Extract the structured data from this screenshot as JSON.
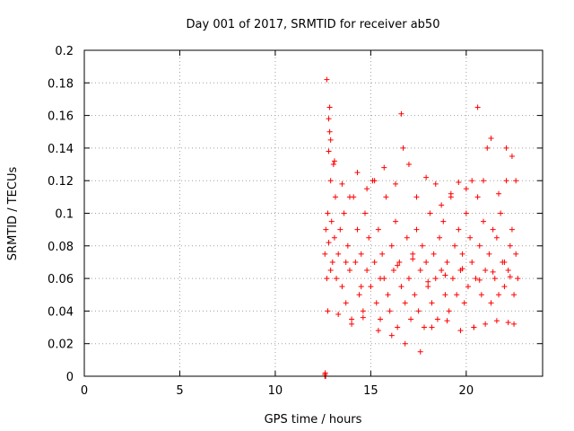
{
  "chart_data": {
    "type": "scatter",
    "title": "Day 001 of 2017, SRMTID for receiver ab50",
    "xlabel": "GPS time / hours",
    "ylabel": "SRMTID / TECUs",
    "xlim": [
      0,
      24
    ],
    "ylim": [
      0,
      0.2
    ],
    "xticks": [
      0,
      5,
      10,
      15,
      20
    ],
    "xtick_labels": [
      "0",
      "5",
      "10",
      "15",
      "20"
    ],
    "yticks": [
      0,
      0.02,
      0.04,
      0.06,
      0.08,
      0.1,
      0.12,
      0.14,
      0.16,
      0.18,
      0.2
    ],
    "ytick_labels": [
      "0",
      "0.02",
      "0.04",
      "0.06",
      "0.08",
      "0.1",
      "0.12",
      "0.14",
      "0.16",
      "0.18",
      "0.2"
    ],
    "grid": true,
    "marker": "+",
    "color": "#ff0000",
    "series": [
      {
        "name": "SRMTID",
        "x": [
          12.6,
          12.65,
          12.7,
          12.75,
          12.8,
          12.85,
          12.9,
          12.95,
          13.0,
          13.05,
          13.1,
          13.15,
          13.2,
          13.3,
          13.4,
          13.5,
          13.6,
          13.7,
          13.8,
          13.9,
          14.0,
          14.1,
          14.2,
          14.3,
          14.4,
          14.5,
          14.6,
          14.7,
          14.8,
          14.9,
          15.0,
          15.1,
          15.2,
          15.3,
          15.4,
          15.5,
          15.6,
          15.7,
          15.8,
          15.9,
          16.0,
          16.1,
          16.2,
          16.3,
          16.4,
          16.5,
          16.6,
          16.7,
          16.8,
          16.9,
          17.0,
          17.1,
          17.2,
          17.3,
          17.4,
          17.5,
          17.6,
          17.7,
          17.8,
          17.9,
          18.0,
          18.1,
          18.2,
          18.3,
          18.4,
          18.5,
          18.6,
          18.7,
          18.8,
          18.9,
          19.0,
          19.1,
          19.2,
          19.3,
          19.4,
          19.5,
          19.6,
          19.7,
          19.8,
          19.9,
          20.0,
          20.1,
          20.2,
          20.3,
          20.4,
          20.5,
          20.6,
          20.7,
          20.8,
          20.9,
          21.0,
          21.1,
          21.2,
          21.3,
          21.4,
          21.5,
          21.6,
          21.7,
          21.8,
          21.9,
          22.0,
          22.1,
          22.2,
          22.3,
          22.4,
          22.5,
          22.6,
          22.7,
          12.7,
          12.8,
          12.9,
          12.8,
          12.85,
          13.1,
          13.5,
          13.9,
          14.3,
          14.8,
          15.2,
          15.7,
          16.3,
          16.6,
          17.0,
          17.4,
          17.9,
          18.4,
          18.7,
          19.2,
          19.6,
          20.0,
          20.3,
          20.6,
          20.9,
          21.3,
          21.7,
          22.1,
          22.4,
          22.6,
          12.75,
          13.3,
          14.0,
          14.6,
          15.4,
          16.1,
          16.8,
          17.6,
          18.2,
          19.0,
          19.7,
          20.4,
          21.0,
          21.6,
          22.2,
          22.5,
          12.9,
          13.7,
          14.5,
          15.5,
          16.4,
          17.2,
          18.0,
          18.9,
          19.8,
          20.7,
          21.4,
          22.0,
          22.3,
          12.6,
          12.6,
          12.62,
          12.64
        ],
        "y": [
          0.075,
          0.09,
          0.06,
          0.1,
          0.082,
          0.165,
          0.12,
          0.095,
          0.07,
          0.13,
          0.085,
          0.11,
          0.06,
          0.075,
          0.09,
          0.055,
          0.1,
          0.045,
          0.08,
          0.065,
          0.035,
          0.11,
          0.07,
          0.09,
          0.05,
          0.075,
          0.04,
          0.1,
          0.065,
          0.085,
          0.055,
          0.12,
          0.07,
          0.045,
          0.09,
          0.035,
          0.075,
          0.06,
          0.11,
          0.05,
          0.04,
          0.08,
          0.065,
          0.095,
          0.03,
          0.07,
          0.055,
          0.14,
          0.045,
          0.085,
          0.06,
          0.035,
          0.075,
          0.05,
          0.09,
          0.04,
          0.065,
          0.08,
          0.03,
          0.07,
          0.055,
          0.1,
          0.045,
          0.075,
          0.06,
          0.035,
          0.085,
          0.065,
          0.095,
          0.05,
          0.07,
          0.04,
          0.11,
          0.06,
          0.08,
          0.05,
          0.09,
          0.065,
          0.075,
          0.045,
          0.1,
          0.055,
          0.085,
          0.07,
          0.03,
          0.06,
          0.11,
          0.08,
          0.05,
          0.095,
          0.065,
          0.14,
          0.075,
          0.045,
          0.09,
          0.06,
          0.085,
          0.05,
          0.1,
          0.07,
          0.055,
          0.12,
          0.065,
          0.08,
          0.09,
          0.05,
          0.075,
          0.06,
          0.182,
          0.158,
          0.145,
          0.138,
          0.15,
          0.132,
          0.118,
          0.11,
          0.125,
          0.115,
          0.12,
          0.128,
          0.118,
          0.161,
          0.13,
          0.11,
          0.122,
          0.118,
          0.105,
          0.112,
          0.119,
          0.115,
          0.12,
          0.165,
          0.12,
          0.146,
          0.112,
          0.14,
          0.135,
          0.12,
          0.04,
          0.038,
          0.032,
          0.036,
          0.028,
          0.025,
          0.02,
          0.015,
          0.03,
          0.034,
          0.028,
          0.03,
          0.032,
          0.034,
          0.033,
          0.032,
          0.065,
          0.07,
          0.055,
          0.06,
          0.068,
          0.072,
          0.058,
          0.062,
          0.066,
          0.059,
          0.064,
          0.07,
          0.061,
          0.0,
          0.001,
          0.002,
          0.0
        ]
      }
    ]
  }
}
